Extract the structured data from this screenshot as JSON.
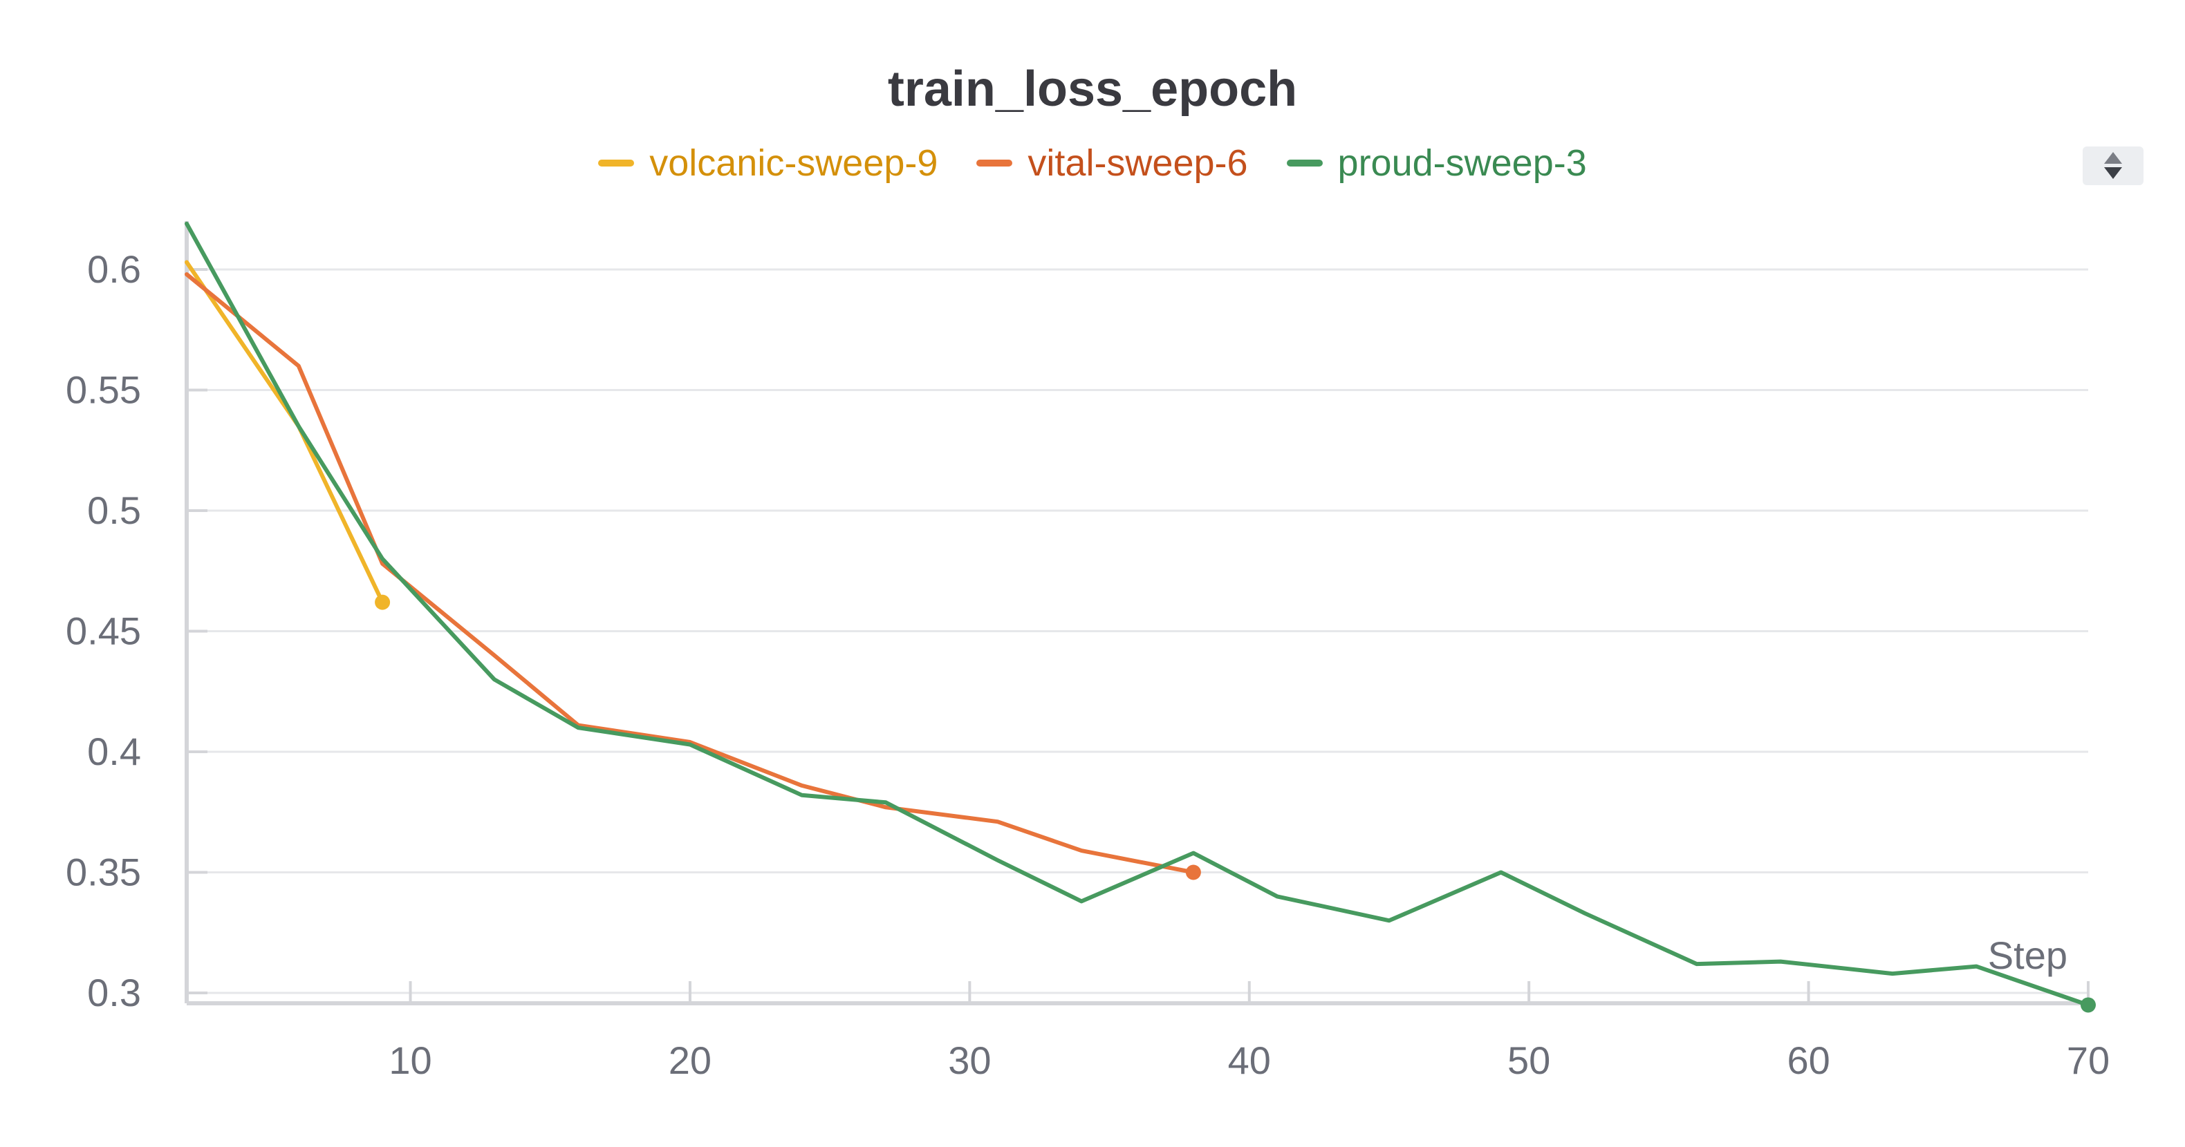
{
  "chart_data": {
    "type": "line",
    "title": "train_loss_epoch",
    "xlabel": "Step",
    "ylabel": "",
    "xlim": [
      2,
      70
    ],
    "ylim": [
      0.3,
      0.62
    ],
    "xticks": [
      10,
      20,
      30,
      40,
      50,
      60,
      70
    ],
    "yticks": [
      0.3,
      0.35,
      0.4,
      0.45,
      0.5,
      0.55,
      0.6
    ],
    "xtick_labels": [
      "10",
      "20",
      "30",
      "40",
      "50",
      "60",
      "70"
    ],
    "ytick_labels": [
      "0.3",
      "0.35",
      "0.4",
      "0.45",
      "0.5",
      "0.55",
      "0.6"
    ],
    "legend_position": "top-center",
    "grid": true,
    "series": [
      {
        "name": "volcanic-sweep-9",
        "color": "#f0b429",
        "text_color": "#d4900a",
        "x": [
          2,
          6,
          9
        ],
        "y": [
          0.603,
          0.535,
          0.462
        ]
      },
      {
        "name": "vital-sweep-6",
        "color": "#e8743b",
        "text_color": "#c4501c",
        "x": [
          2,
          6,
          9,
          13,
          16,
          20,
          24,
          27,
          31,
          34,
          38
        ],
        "y": [
          0.598,
          0.56,
          0.478,
          0.44,
          0.411,
          0.404,
          0.386,
          0.377,
          0.371,
          0.359,
          0.35
        ]
      },
      {
        "name": "proud-sweep-3",
        "color": "#479a5f",
        "text_color": "#3a8a52",
        "x": [
          2,
          6,
          9,
          13,
          16,
          20,
          24,
          27,
          31,
          34,
          38,
          41,
          45,
          49,
          52,
          56,
          59,
          63,
          66,
          70
        ],
        "y": [
          0.619,
          0.535,
          0.48,
          0.43,
          0.41,
          0.403,
          0.382,
          0.379,
          0.355,
          0.338,
          0.358,
          0.34,
          0.33,
          0.35,
          0.333,
          0.312,
          0.313,
          0.308,
          0.311,
          0.295
        ]
      }
    ]
  }
}
